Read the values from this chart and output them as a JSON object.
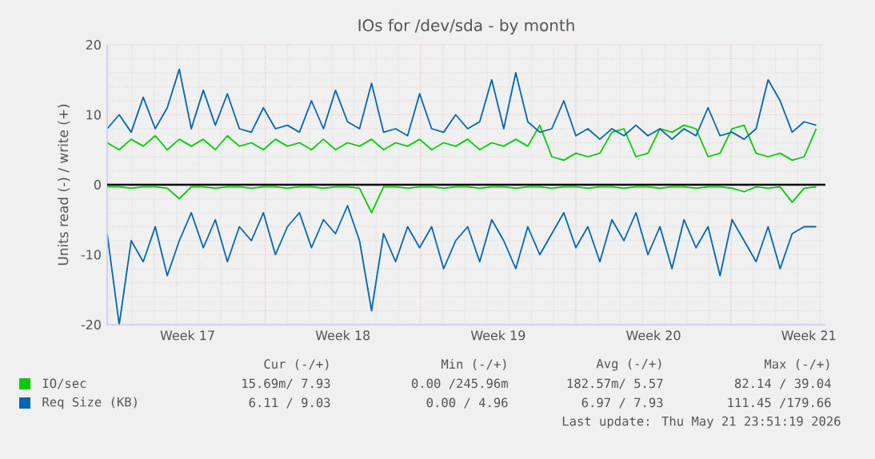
{
  "chart_data": {
    "type": "line",
    "title": "IOs for /dev/sda - by month",
    "ylabel": "Units read (-) / write (+)",
    "x": [
      "2026-04-19T21:00",
      "2026-04-20T10:00",
      "2026-04-20T23:00",
      "2026-04-21T12:00",
      "2026-04-22T01:00",
      "2026-04-22T14:00",
      "2026-04-23T03:00",
      "2026-04-23T16:00",
      "2026-04-24T05:00",
      "2026-04-24T18:00",
      "2026-04-25T07:00",
      "2026-04-25T20:00",
      "2026-04-26T09:00",
      "2026-04-26T22:00",
      "2026-04-27T11:00",
      "2026-04-28T00:00",
      "2026-04-28T13:00",
      "2026-04-29T02:00",
      "2026-04-29T15:00",
      "2026-04-30T04:00",
      "2026-04-30T17:00",
      "2026-05-01T06:00",
      "2026-05-01T19:00",
      "2026-05-02T08:00",
      "2026-05-02T21:00",
      "2026-05-03T10:00",
      "2026-05-03T23:00",
      "2026-05-04T12:00",
      "2026-05-05T01:00",
      "2026-05-05T14:00",
      "2026-05-06T03:00",
      "2026-05-06T16:00",
      "2026-05-07T05:00",
      "2026-05-07T18:00",
      "2026-05-08T07:00",
      "2026-05-08T20:00",
      "2026-05-09T09:00",
      "2026-05-09T22:00",
      "2026-05-10T11:00",
      "2026-05-11T00:00",
      "2026-05-11T13:00",
      "2026-05-12T02:00",
      "2026-05-12T15:00",
      "2026-05-13T04:00",
      "2026-05-13T17:00",
      "2026-05-14T06:00",
      "2026-05-14T19:00",
      "2026-05-15T08:00",
      "2026-05-15T21:00",
      "2026-05-16T10:00",
      "2026-05-16T23:00",
      "2026-05-17T12:00",
      "2026-05-18T01:00",
      "2026-05-18T14:00",
      "2026-05-19T03:00",
      "2026-05-19T16:00",
      "2026-05-20T05:00",
      "2026-05-20T18:00",
      "2026-05-21T07:00",
      "2026-05-21T20:00"
    ],
    "xlim": [
      "2026-04-19T21:00",
      "2026-05-22T06:00"
    ],
    "xticks": [
      {
        "value": "2026-04-23T12:00",
        "label": "Week 17"
      },
      {
        "value": "2026-04-27",
        "label": null
      },
      {
        "value": "2026-04-30T12:00",
        "label": "Week 18"
      },
      {
        "value": "2026-05-04",
        "label": null
      },
      {
        "value": "2026-05-07T12:00",
        "label": "Week 19"
      },
      {
        "value": "2026-05-11",
        "label": null
      },
      {
        "value": "2026-05-14T12:00",
        "label": "Week 20"
      },
      {
        "value": "2026-05-18",
        "label": null
      },
      {
        "value": "2026-05-21T12:00",
        "label": "Week 21"
      }
    ],
    "ylim": [
      -20,
      20
    ],
    "yticks": [
      -20,
      -10,
      0,
      10,
      20
    ],
    "grid": true,
    "legend": "bottom",
    "marker": "none",
    "line_style": "solid",
    "series": [
      {
        "name": "IO/sec",
        "color": "#00cc00",
        "values": [
          6,
          5,
          6.5,
          5.5,
          7,
          5,
          6.5,
          5.5,
          6.5,
          5,
          7,
          5.5,
          6,
          5,
          6.5,
          5.5,
          6,
          5,
          6.5,
          5,
          6,
          5.5,
          6.5,
          5,
          6,
          5.5,
          6.5,
          5,
          6,
          5.5,
          6.5,
          5,
          6,
          5.5,
          6.5,
          5.5,
          8.5,
          4,
          3.5,
          4.5,
          4,
          4.5,
          7.5,
          8,
          4,
          4.5,
          8,
          7.5,
          8.5,
          8,
          4,
          4.5,
          8,
          8.5,
          4.5,
          4,
          4.5,
          3.5,
          4,
          8
        ]
      },
      {
        "color": "#00cc00",
        "values": [
          -0.3,
          -0.3,
          -0.5,
          -0.3,
          -0.3,
          -0.5,
          -2,
          -0.3,
          -0.3,
          -0.5,
          -0.3,
          -0.3,
          -0.5,
          -0.3,
          -0.3,
          -0.5,
          -0.3,
          -0.3,
          -0.5,
          -0.3,
          -0.3,
          -0.5,
          -4,
          -0.3,
          -0.3,
          -0.5,
          -0.3,
          -0.3,
          -0.5,
          -0.3,
          -0.3,
          -0.5,
          -0.3,
          -0.3,
          -0.5,
          -0.3,
          -0.3,
          -0.5,
          -0.3,
          -0.3,
          -0.5,
          -0.3,
          -0.3,
          -0.5,
          -0.3,
          -0.3,
          -0.5,
          -0.3,
          -0.3,
          -0.5,
          -0.3,
          -0.3,
          -0.5,
          -1,
          -0.3,
          -0.5,
          -0.3,
          -2.5,
          -0.5,
          -0.3
        ]
      },
      {
        "name": "Req Size (KB)",
        "color": "#0066b3",
        "values": [
          8,
          10,
          7.5,
          12.5,
          8,
          11,
          16.5,
          8,
          13.5,
          8.5,
          13,
          8,
          7.5,
          11,
          8,
          8.5,
          7.5,
          12,
          8,
          13.5,
          9,
          8,
          14.5,
          7.5,
          8,
          7,
          13,
          8,
          7.5,
          10,
          8,
          9,
          15,
          8,
          16,
          9,
          7.5,
          8,
          12,
          7,
          8,
          6.5,
          8,
          7,
          8.5,
          7,
          8,
          6.5,
          8,
          7,
          11,
          7,
          7.5,
          6.5,
          8,
          15,
          12,
          7.5,
          9,
          8.5
        ]
      },
      {
        "color": "#0066b3",
        "values": [
          -7,
          -20,
          -8,
          -11,
          -6,
          -13,
          -8,
          -4,
          -9,
          -5,
          -11,
          -6,
          -8,
          -4,
          -10,
          -6,
          -4,
          -9,
          -5,
          -7,
          -3,
          -8,
          -18,
          -7,
          -11,
          -6,
          -9,
          -6,
          -12,
          -8,
          -6,
          -11,
          -5,
          -8,
          -12,
          -6,
          -10,
          -7,
          -4,
          -9,
          -6,
          -11,
          -5,
          -8,
          -4,
          -10,
          -6,
          -12,
          -5,
          -9,
          -6,
          -13,
          -5,
          -8,
          -11,
          -6,
          -12,
          -7,
          -6,
          -6
        ]
      }
    ],
    "ref_lines": [
      {
        "axis": "y",
        "value": 0,
        "color": "#000000"
      }
    ],
    "annotations": [
      "Cur (-/+)",
      "Min (-/+)",
      "Avg (-/+)",
      "Max (-/+)",
      "15.69m/ 7.93",
      "0.00 /245.96m",
      "182.57m/ 5.57",
      "82.14 / 39.04",
      "6.11 / 9.03",
      "0.00 / 4.96",
      "6.97 / 7.93",
      "111.45 /179.66",
      "Last update: Thu May 21 23:51:19 2026"
    ]
  }
}
